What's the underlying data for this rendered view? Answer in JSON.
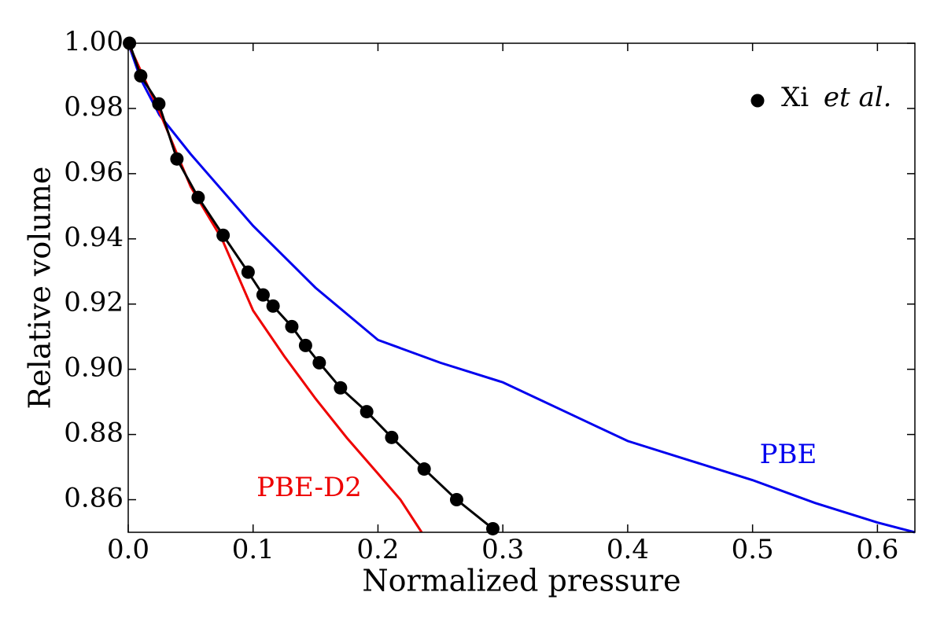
{
  "chart_data": {
    "type": "line",
    "xlabel": "Normalized pressure",
    "ylabel": "Relative volume",
    "xlim": [
      0,
      0.63
    ],
    "ylim": [
      0.85,
      1.0
    ],
    "xticks": [
      {
        "value": 0,
        "label": "0.0"
      },
      0.1,
      0.2,
      0.3,
      0.4,
      0.5,
      0.6
    ],
    "yticks": [
      0.86,
      0.88,
      {
        "value": 0.9,
        "label": "0.90"
      },
      0.92,
      0.94,
      0.96,
      0.98,
      {
        "value": 1.0,
        "label": "1.00"
      }
    ],
    "legend": "upper right",
    "series": [
      {
        "name": "Xi et al.",
        "color": "#000000",
        "markers": true,
        "x": [
          0.001,
          0.01,
          0.0245,
          0.039,
          0.056,
          0.076,
          0.096,
          0.108,
          0.116,
          0.131,
          0.142,
          0.153,
          0.17,
          0.191,
          0.211,
          0.237,
          0.263,
          0.292
        ],
        "values": [
          1.0,
          0.99,
          0.9814,
          0.9645,
          0.9527,
          0.9411,
          0.9298,
          0.9228,
          0.9194,
          0.9131,
          0.9073,
          0.902,
          0.8943,
          0.887,
          0.8791,
          0.8694,
          0.86,
          0.8511
        ]
      },
      {
        "name": "PBE",
        "color": "#0000ee",
        "markers": false,
        "x": [
          0,
          0.01,
          0.025,
          0.05,
          0.1,
          0.15,
          0.2,
          0.25,
          0.3,
          0.35,
          0.4,
          0.45,
          0.5,
          0.55,
          0.6,
          0.63
        ],
        "values": [
          1.0,
          0.989,
          0.978,
          0.966,
          0.944,
          0.925,
          0.909,
          0.902,
          0.896,
          0.887,
          0.878,
          0.872,
          0.866,
          0.859,
          0.853,
          0.85
        ]
      },
      {
        "name": "PBE-D2",
        "color": "#ee0000",
        "markers": false,
        "x": [
          0,
          0.025,
          0.05,
          0.075,
          0.1,
          0.125,
          0.15,
          0.175,
          0.2,
          0.218,
          0.235
        ],
        "values": [
          1.0,
          0.979,
          0.956,
          0.94,
          0.918,
          0.904,
          0.891,
          0.879,
          0.868,
          0.86,
          0.85
        ]
      }
    ]
  }
}
